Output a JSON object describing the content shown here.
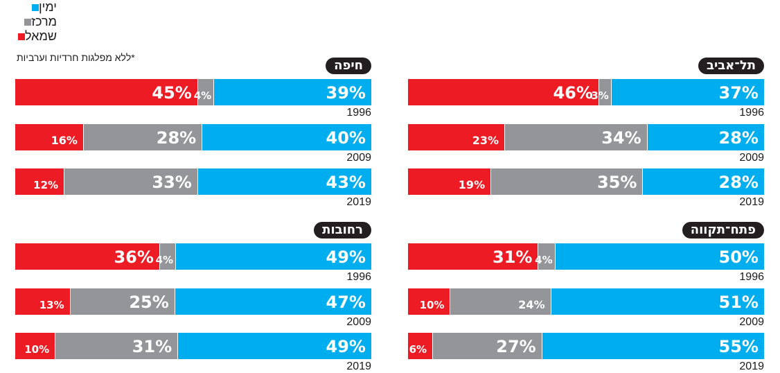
{
  "legend": [
    {
      "label": "ימין",
      "color": "#00aeef"
    },
    {
      "label": "מרכז",
      "color": "#939598"
    },
    {
      "label": "שמאל",
      "color": "#ed1c24"
    }
  ],
  "note": "*ללא מפלגות חרדיות וערביות",
  "colors": {
    "left": "#ed1c24",
    "center": "#939598",
    "right": "#00aeef"
  },
  "chart_data": {
    "type": "bar",
    "series": [
      {
        "name": "שמאל"
      },
      {
        "name": "מרכז"
      },
      {
        "name": "ימין"
      }
    ],
    "panels": [
      {
        "city": "חיפה",
        "bars": [
          {
            "year": "1996",
            "left": 45,
            "center": 4,
            "right": 39,
            "labels": {
              "left": "45%",
              "center": "4%",
              "right": "39%"
            }
          },
          {
            "year": "2009",
            "left": 16,
            "center": 28,
            "right": 40,
            "labels": {
              "left": "16%",
              "center": "28%",
              "right": "40%"
            }
          },
          {
            "year": "2019",
            "left": 12,
            "center": 33,
            "right": 43,
            "labels": {
              "left": "12%",
              "center": "33%",
              "right": "43%"
            }
          }
        ]
      },
      {
        "city": "תל־אביב",
        "bars": [
          {
            "year": "1996",
            "left": 46,
            "center": 3,
            "right": 37,
            "labels": {
              "left": "46%",
              "center": "3%",
              "right": "37%"
            }
          },
          {
            "year": "2009",
            "left": 23,
            "center": 34,
            "right": 28,
            "labels": {
              "left": "23%",
              "center": "34%",
              "right": "28%"
            }
          },
          {
            "year": "2019",
            "left": 19,
            "center": 35,
            "right": 28,
            "labels": {
              "left": "19%",
              "center": "35%",
              "right": "28%"
            }
          }
        ]
      },
      {
        "city": "רחובות",
        "bars": [
          {
            "year": "1996",
            "left": 36,
            "center": 4,
            "right": 49,
            "labels": {
              "left": "36%",
              "center": "4%",
              "right": "49%"
            }
          },
          {
            "year": "2009",
            "left": 13,
            "center": 25,
            "right": 47,
            "labels": {
              "left": "13%",
              "center": "25%",
              "right": "47%"
            }
          },
          {
            "year": "2019",
            "left": 10,
            "center": 31,
            "right": 49,
            "labels": {
              "left": "10%",
              "center": "31%",
              "right": "49%"
            }
          }
        ]
      },
      {
        "city": "פתח־תקווה",
        "bars": [
          {
            "year": "1996",
            "left": 31,
            "center": 4,
            "right": 50,
            "labels": {
              "left": "31%",
              "center": "4%",
              "right": "50%"
            }
          },
          {
            "year": "2009",
            "left": 10,
            "center": 24,
            "right": 51,
            "labels": {
              "left": "10%",
              "center": "24%",
              "right": "51%"
            }
          },
          {
            "year": "2019",
            "left": 6,
            "center": 27,
            "right": 55,
            "labels": {
              "left": "6%",
              "center": "27%",
              "right": "55%"
            }
          }
        ]
      }
    ]
  }
}
